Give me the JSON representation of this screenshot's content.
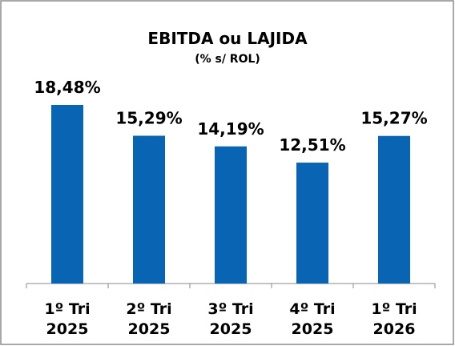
{
  "chart_data": {
    "type": "bar",
    "title": "EBITDA ou LAJIDA",
    "subtitle": "(% s/ ROL)",
    "categories": [
      "1º Tri 2025",
      "2º Tri 2025",
      "3º Tri 2025",
      "4º Tri 2025",
      "1º Tri 2026"
    ],
    "values": [
      18.48,
      15.29,
      14.19,
      12.51,
      15.27
    ],
    "value_labels": [
      "18,48%",
      "15,29%",
      "14,19%",
      "12,51%",
      "15,27%"
    ],
    "color": "#0a64b4"
  }
}
